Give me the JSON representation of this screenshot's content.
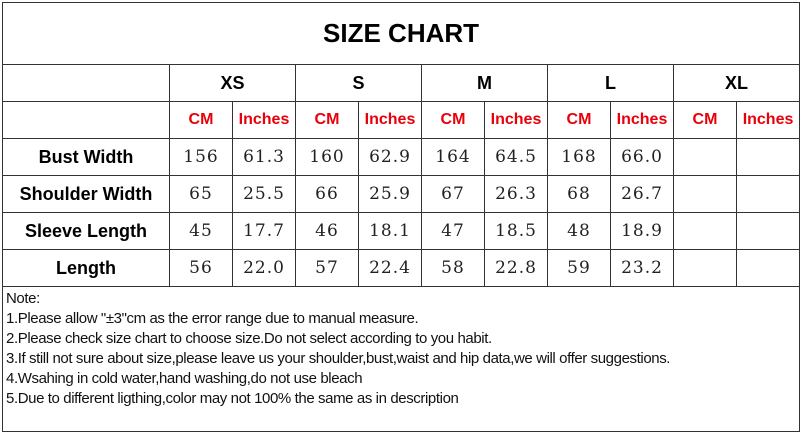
{
  "title": "SIZE CHART",
  "sizes": [
    "XS",
    "S",
    "M",
    "L",
    "XL"
  ],
  "units": {
    "cm": "CM",
    "inches": "Inches"
  },
  "colors": {
    "unit_text": "#e8000b",
    "border": "#333333"
  },
  "rows": [
    {
      "label": "Bust Width",
      "values": [
        "156",
        "61.3",
        "160",
        "62.9",
        "164",
        "64.5",
        "168",
        "66.0",
        "",
        ""
      ]
    },
    {
      "label": "Shoulder Width",
      "values": [
        "65",
        "25.5",
        "66",
        "25.9",
        "67",
        "26.3",
        "68",
        "26.7",
        "",
        ""
      ]
    },
    {
      "label": "Sleeve Length",
      "values": [
        "45",
        "17.7",
        "46",
        "18.1",
        "47",
        "18.5",
        "48",
        "18.9",
        "",
        ""
      ]
    },
    {
      "label": "Length",
      "values": [
        "56",
        "22.0",
        "57",
        "22.4",
        "58",
        "22.8",
        "59",
        "23.2",
        "",
        ""
      ]
    }
  ],
  "notes": {
    "heading": "Note:",
    "items": [
      "1.Please allow \"±3\"cm as the error range due to manual measure.",
      "2.Please check size chart to choose size.Do not select according to you habit.",
      "3.If still not sure about size,please leave us your shoulder,bust,waist and hip data,we will offer suggestions.",
      "4.Wsahing in cold water,hand washing,do not use bleach",
      "5.Due to different ligthing,color may not 100% the same as in description"
    ]
  }
}
